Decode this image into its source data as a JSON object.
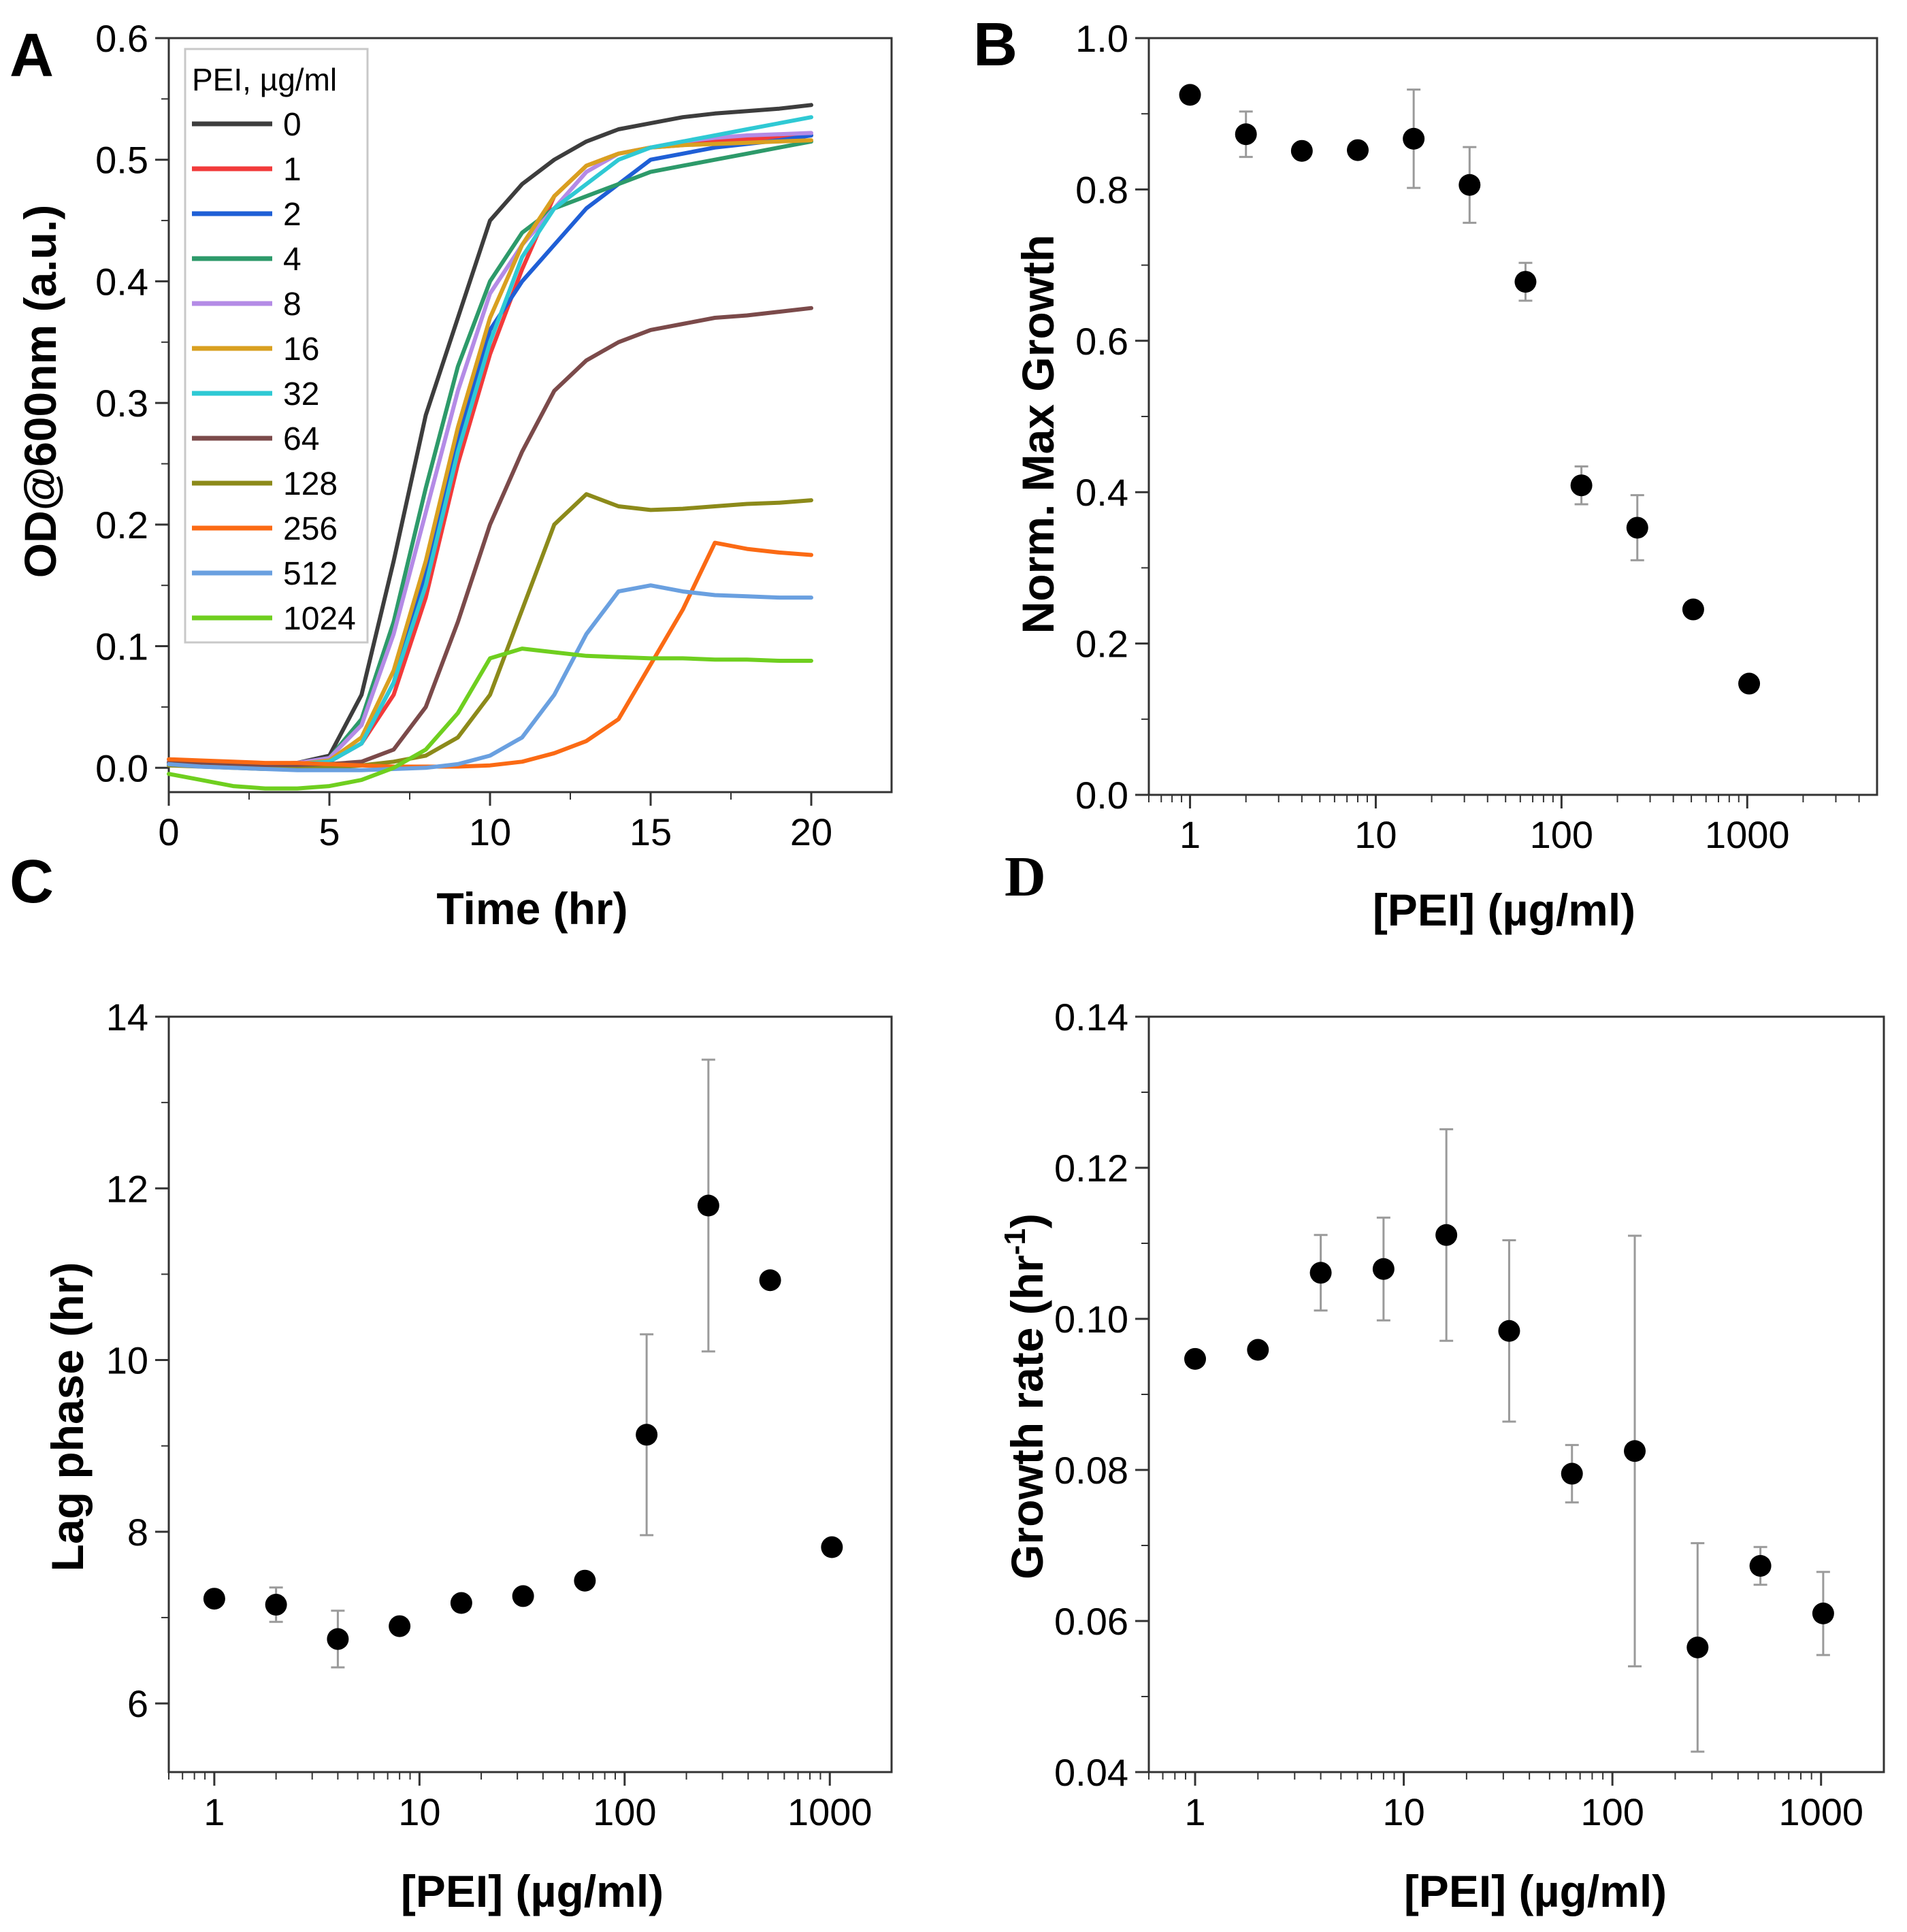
{
  "chart_data": [
    {
      "panel": "A",
      "type": "line",
      "xlabel": "Time (hr)",
      "ylabel": "OD@600nm (a.u.)",
      "xlim": [
        0,
        22.5
      ],
      "ylim": [
        -0.02,
        0.6
      ],
      "xticks": [
        0,
        5,
        10,
        15,
        20
      ],
      "xtick_labels": [
        "0",
        "5",
        "10",
        "15",
        "20"
      ],
      "yticks": [
        0.0,
        0.1,
        0.2,
        0.3,
        0.4,
        0.5,
        0.6
      ],
      "ytick_labels": [
        "0.0",
        "0.1",
        "0.2",
        "0.3",
        "0.4",
        "0.5",
        "0.6"
      ],
      "legend_title": "PEI, µg/ml",
      "legend_position": "top-left",
      "x": [
        0,
        1,
        2,
        3,
        4,
        5,
        6,
        7,
        8,
        9,
        10,
        11,
        12,
        13,
        14,
        15,
        16,
        17,
        18,
        19,
        20
      ],
      "series": [
        {
          "name": "0",
          "color": "#3d3d3d",
          "values": [
            0.005,
            0.004,
            0.003,
            0.003,
            0.004,
            0.01,
            0.06,
            0.17,
            0.29,
            0.37,
            0.45,
            0.48,
            0.5,
            0.515,
            0.525,
            0.53,
            0.535,
            0.538,
            0.54,
            0.542,
            0.545
          ]
        },
        {
          "name": "1",
          "color": "#f23a3a",
          "values": [
            0.004,
            0.003,
            0.003,
            0.002,
            0.003,
            0.005,
            0.02,
            0.06,
            0.14,
            0.25,
            0.34,
            0.41,
            0.47,
            0.495,
            0.505,
            0.51,
            0.512,
            0.515,
            0.517,
            0.518,
            0.52
          ]
        },
        {
          "name": "2",
          "color": "#1f5fd6",
          "values": [
            0.004,
            0.003,
            0.003,
            0.002,
            0.003,
            0.005,
            0.02,
            0.07,
            0.16,
            0.27,
            0.36,
            0.4,
            0.43,
            0.46,
            0.48,
            0.5,
            0.505,
            0.51,
            0.513,
            0.516,
            0.52
          ]
        },
        {
          "name": "4",
          "color": "#2d9a6a",
          "values": [
            0.005,
            0.004,
            0.003,
            0.003,
            0.004,
            0.008,
            0.04,
            0.12,
            0.23,
            0.33,
            0.4,
            0.44,
            0.46,
            0.47,
            0.48,
            0.49,
            0.495,
            0.5,
            0.505,
            0.51,
            0.515
          ]
        },
        {
          "name": "8",
          "color": "#b48be6",
          "values": [
            0.005,
            0.004,
            0.003,
            0.003,
            0.004,
            0.008,
            0.035,
            0.11,
            0.21,
            0.31,
            0.39,
            0.43,
            0.46,
            0.49,
            0.505,
            0.51,
            0.515,
            0.518,
            0.52,
            0.521,
            0.522
          ]
        },
        {
          "name": "16",
          "color": "#d9a020",
          "values": [
            0.004,
            0.003,
            0.003,
            0.002,
            0.003,
            0.006,
            0.025,
            0.08,
            0.17,
            0.28,
            0.37,
            0.43,
            0.47,
            0.495,
            0.505,
            0.51,
            0.512,
            0.513,
            0.514,
            0.515,
            0.516
          ]
        },
        {
          "name": "32",
          "color": "#2fc9d4",
          "values": [
            0.004,
            0.003,
            0.003,
            0.002,
            0.003,
            0.005,
            0.02,
            0.07,
            0.15,
            0.26,
            0.35,
            0.42,
            0.46,
            0.48,
            0.5,
            0.51,
            0.515,
            0.52,
            0.525,
            0.53,
            0.535
          ]
        },
        {
          "name": "64",
          "color": "#7b4a4a",
          "values": [
            0.004,
            0.003,
            0.002,
            0.002,
            0.002,
            0.003,
            0.005,
            0.015,
            0.05,
            0.12,
            0.2,
            0.26,
            0.31,
            0.335,
            0.35,
            0.36,
            0.365,
            0.37,
            0.372,
            0.375,
            0.378
          ]
        },
        {
          "name": "128",
          "color": "#8c8a1a",
          "values": [
            0.002,
            0.001,
            0.0,
            -0.001,
            -0.001,
            0.0,
            0.002,
            0.005,
            0.01,
            0.025,
            0.06,
            0.13,
            0.2,
            0.225,
            0.215,
            0.212,
            0.213,
            0.215,
            0.217,
            0.218,
            0.22
          ]
        },
        {
          "name": "256",
          "color": "#fb6a14",
          "values": [
            0.007,
            0.006,
            0.005,
            0.004,
            0.004,
            0.003,
            0.002,
            0.001,
            0.001,
            0.001,
            0.002,
            0.005,
            0.012,
            0.022,
            0.04,
            0.085,
            0.13,
            0.185,
            0.18,
            0.177,
            0.175
          ]
        },
        {
          "name": "512",
          "color": "#6aa0e0",
          "values": [
            0.003,
            0.001,
            0.0,
            -0.001,
            -0.002,
            -0.002,
            -0.002,
            -0.001,
            0.0,
            0.003,
            0.01,
            0.025,
            0.06,
            0.11,
            0.145,
            0.15,
            0.145,
            0.142,
            0.141,
            0.14,
            0.14
          ]
        },
        {
          "name": "1024",
          "color": "#6fcf1f",
          "values": [
            -0.005,
            -0.01,
            -0.015,
            -0.017,
            -0.017,
            -0.015,
            -0.01,
            0.0,
            0.015,
            0.045,
            0.09,
            0.098,
            0.095,
            0.092,
            0.091,
            0.09,
            0.09,
            0.089,
            0.089,
            0.088,
            0.088
          ]
        }
      ]
    },
    {
      "panel": "B",
      "type": "scatter",
      "xscale": "log",
      "xlabel": "[PEI] (µg/ml)",
      "ylabel": "Norm. Max Growth",
      "xlim": [
        0.6,
        5000
      ],
      "ylim": [
        0.0,
        1.0
      ],
      "xticks": [
        1,
        10,
        100,
        1000
      ],
      "xtick_labels": [
        "1",
        "10",
        "100",
        "1000"
      ],
      "yticks": [
        0.0,
        0.2,
        0.4,
        0.6,
        0.8,
        1.0
      ],
      "ytick_labels": [
        "0.0",
        "0.2",
        "0.4",
        "0.6",
        "0.8",
        "1.0"
      ],
      "x": [
        1,
        2,
        4,
        8,
        16,
        32,
        64,
        128,
        256,
        512,
        1024
      ],
      "y": [
        0.925,
        0.873,
        0.851,
        0.852,
        0.867,
        0.806,
        0.678,
        0.409,
        0.353,
        0.245,
        0.147
      ],
      "err": [
        0.0,
        0.03,
        0.0,
        0.0,
        0.065,
        0.05,
        0.025,
        0.025,
        0.043,
        0.0,
        0.0
      ]
    },
    {
      "panel": "C",
      "type": "scatter",
      "xscale": "log",
      "xlabel": "[PEI] (µg/ml)",
      "ylabel": "Lag phase (hr)",
      "xlim": [
        0.6,
        2000
      ],
      "ylim": [
        5.2,
        14
      ],
      "xticks": [
        1,
        10,
        100,
        1000
      ],
      "xtick_labels": [
        "1",
        "10",
        "100",
        "1000"
      ],
      "yticks": [
        6,
        8,
        10,
        12,
        14
      ],
      "ytick_labels": [
        "6",
        "8",
        "10",
        "12",
        "14"
      ],
      "x": [
        1,
        2,
        4,
        8,
        16,
        32,
        64,
        128,
        256,
        512,
        1024
      ],
      "y": [
        7.22,
        7.15,
        6.75,
        6.9,
        7.17,
        7.25,
        7.43,
        9.13,
        11.8,
        10.93,
        7.82
      ],
      "err": [
        0.0,
        0.2,
        0.33,
        0.0,
        0.0,
        0.0,
        0.0,
        1.17,
        1.7,
        0.0,
        0.0
      ]
    },
    {
      "panel": "D",
      "type": "scatter",
      "xscale": "log",
      "xlabel": "[PEI] (µg/ml)",
      "ylabel": "Growth rate (hr⁻¹)",
      "xlim": [
        0.6,
        2000
      ],
      "ylim": [
        0.04,
        0.14
      ],
      "xticks": [
        1,
        10,
        100,
        1000
      ],
      "xtick_labels": [
        "1",
        "10",
        "100",
        "1000"
      ],
      "yticks": [
        0.04,
        0.06,
        0.08,
        0.1,
        0.12,
        0.14
      ],
      "ytick_labels": [
        "0.04",
        "0.06",
        "0.08",
        "0.10",
        "0.12",
        "0.14"
      ],
      "x": [
        1,
        2,
        4,
        8,
        16,
        32,
        64,
        128,
        256,
        512,
        1024
      ],
      "y": [
        0.0947,
        0.0959,
        0.1061,
        0.1066,
        0.1111,
        0.0984,
        0.0795,
        0.0825,
        0.0565,
        0.0673,
        0.061
      ],
      "err": [
        0.0,
        0.0,
        0.005,
        0.0068,
        0.014,
        0.012,
        0.0038,
        0.0285,
        0.0138,
        0.0025,
        0.0055
      ]
    }
  ],
  "labels": {
    "panel_a": "A",
    "panel_b": "B",
    "panel_c": "C",
    "panel_d": "D",
    "a_legend_title": "PEI, µg/ml",
    "a_xlabel": "Time (hr)",
    "a_ylabel": "OD@600nm (a.u.)",
    "b_xlabel": "[PEI] (µg/ml)",
    "b_ylabel": "Norm. Max Growth",
    "c_xlabel": "[PEI] (µg/ml)",
    "c_ylabel": "Lag phase (hr)",
    "d_xlabel": "[PEI] (µg/ml)",
    "d_ylabel_main": "Growth rate (hr",
    "d_ylabel_sup": "-1",
    "d_ylabel_close": ")"
  }
}
